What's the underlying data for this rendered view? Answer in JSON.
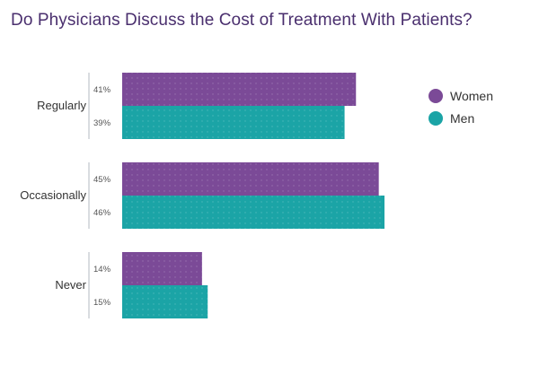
{
  "chart_data": {
    "type": "bar",
    "orientation": "horizontal",
    "title": "Do Physicians Discuss the Cost of Treatment With Patients?",
    "categories": [
      "Regularly",
      "Occasionally",
      "Never"
    ],
    "series": [
      {
        "name": "Women",
        "values": [
          41,
          45,
          14
        ],
        "labels": [
          "41%",
          "45%",
          "14%"
        ],
        "color": "#7b4a97"
      },
      {
        "name": "Men",
        "values": [
          39,
          46,
          15
        ],
        "labels": [
          "39%",
          "46%",
          "15%"
        ],
        "color": "#1ba4a6"
      }
    ],
    "xlim": [
      0,
      46
    ],
    "grid": false,
    "legend_position": "right"
  }
}
